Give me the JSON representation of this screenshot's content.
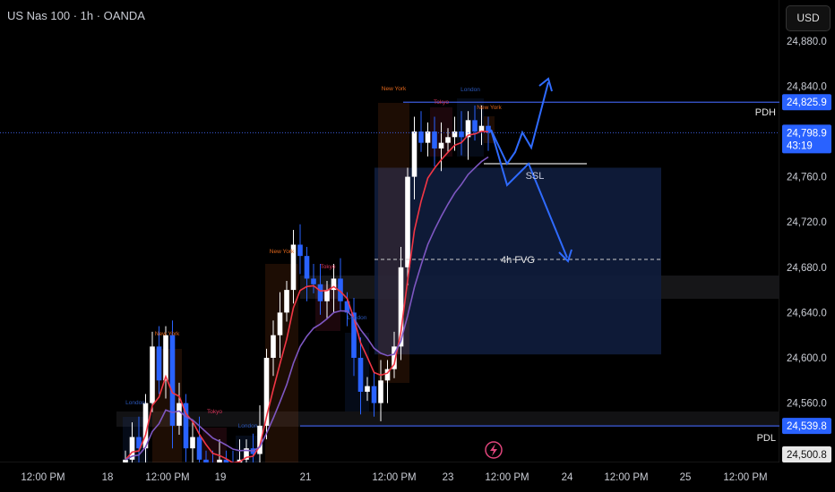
{
  "header": {
    "title": "US Nas 100 · 1h · OANDA",
    "currency": "USD"
  },
  "chart_data": {
    "type": "candlestick",
    "title": "US Nas 100 · 1h · OANDA",
    "ylim": [
      24500,
      24880
    ],
    "y_ticks": [
      "24,880.0",
      "24,840.0",
      "24,760.0",
      "24,720.0",
      "24,680.0",
      "24,640.0",
      "24,600.0",
      "24,560.0"
    ],
    "x_ticks": [
      "12:00 PM",
      "18",
      "12:00 PM",
      "19",
      "21",
      "12:00 PM",
      "23",
      "12:00 PM",
      "24",
      "12:00 PM",
      "25",
      "12:00 PM"
    ],
    "closes": [
      24510,
      24530,
      24520,
      24560,
      24610,
      24580,
      24620,
      24540,
      24560,
      24520,
      24530,
      24510,
      24505,
      24500,
      24510,
      24505,
      24500,
      24510,
      24520,
      24515,
      24540,
      24600,
      24620,
      24640,
      24660,
      24700,
      24690,
      24670,
      24665,
      24650,
      24660,
      24670,
      24650,
      24640,
      24600,
      24570,
      24575,
      24560,
      24580,
      24590,
      24610,
      24680,
      24760,
      24800,
      24790,
      24800,
      24785,
      24790,
      24795,
      24800,
      24795,
      24810,
      24800,
      24805,
      24798.9
    ],
    "price_labels": {
      "pdh": {
        "value": "24,825.9",
        "price": 24825.9,
        "label": "PDH"
      },
      "current": {
        "value": "24,798.9",
        "price": 24798.9,
        "countdown": "43:19"
      },
      "pdl": {
        "value": "24,539.8",
        "price": 24539.8,
        "label": "PDL"
      },
      "low": {
        "value": "24,500.8"
      }
    },
    "fvg": {
      "label": "4h FVG",
      "top": 24768,
      "bottom": 24603,
      "mid": 24687
    },
    "ssl": {
      "label": "SSL",
      "price": 24771
    },
    "sessions": [
      {
        "name": "London",
        "color": "#2a56b8"
      },
      {
        "name": "New York",
        "color": "#e0661c"
      },
      {
        "name": "Tokyo",
        "color": "#d8355a"
      },
      {
        "name": "London",
        "color": "#2a56b8"
      },
      {
        "name": "New York",
        "color": "#e0661c"
      },
      {
        "name": "Tokyo",
        "color": "#d8355a"
      },
      {
        "name": "London",
        "color": "#2a56b8"
      },
      {
        "name": "New York",
        "color": "#e0661c"
      },
      {
        "name": "Tokyo",
        "color": "#d8355a"
      },
      {
        "name": "London",
        "color": "#2a56b8"
      },
      {
        "name": "New York",
        "color": "#e0661c"
      }
    ],
    "colors": {
      "up": "#ffffff",
      "down": "#2962ff",
      "ema_fast": "#f23645",
      "ema_slow": "#7e57c2",
      "annotation": "#2f6bff"
    }
  }
}
